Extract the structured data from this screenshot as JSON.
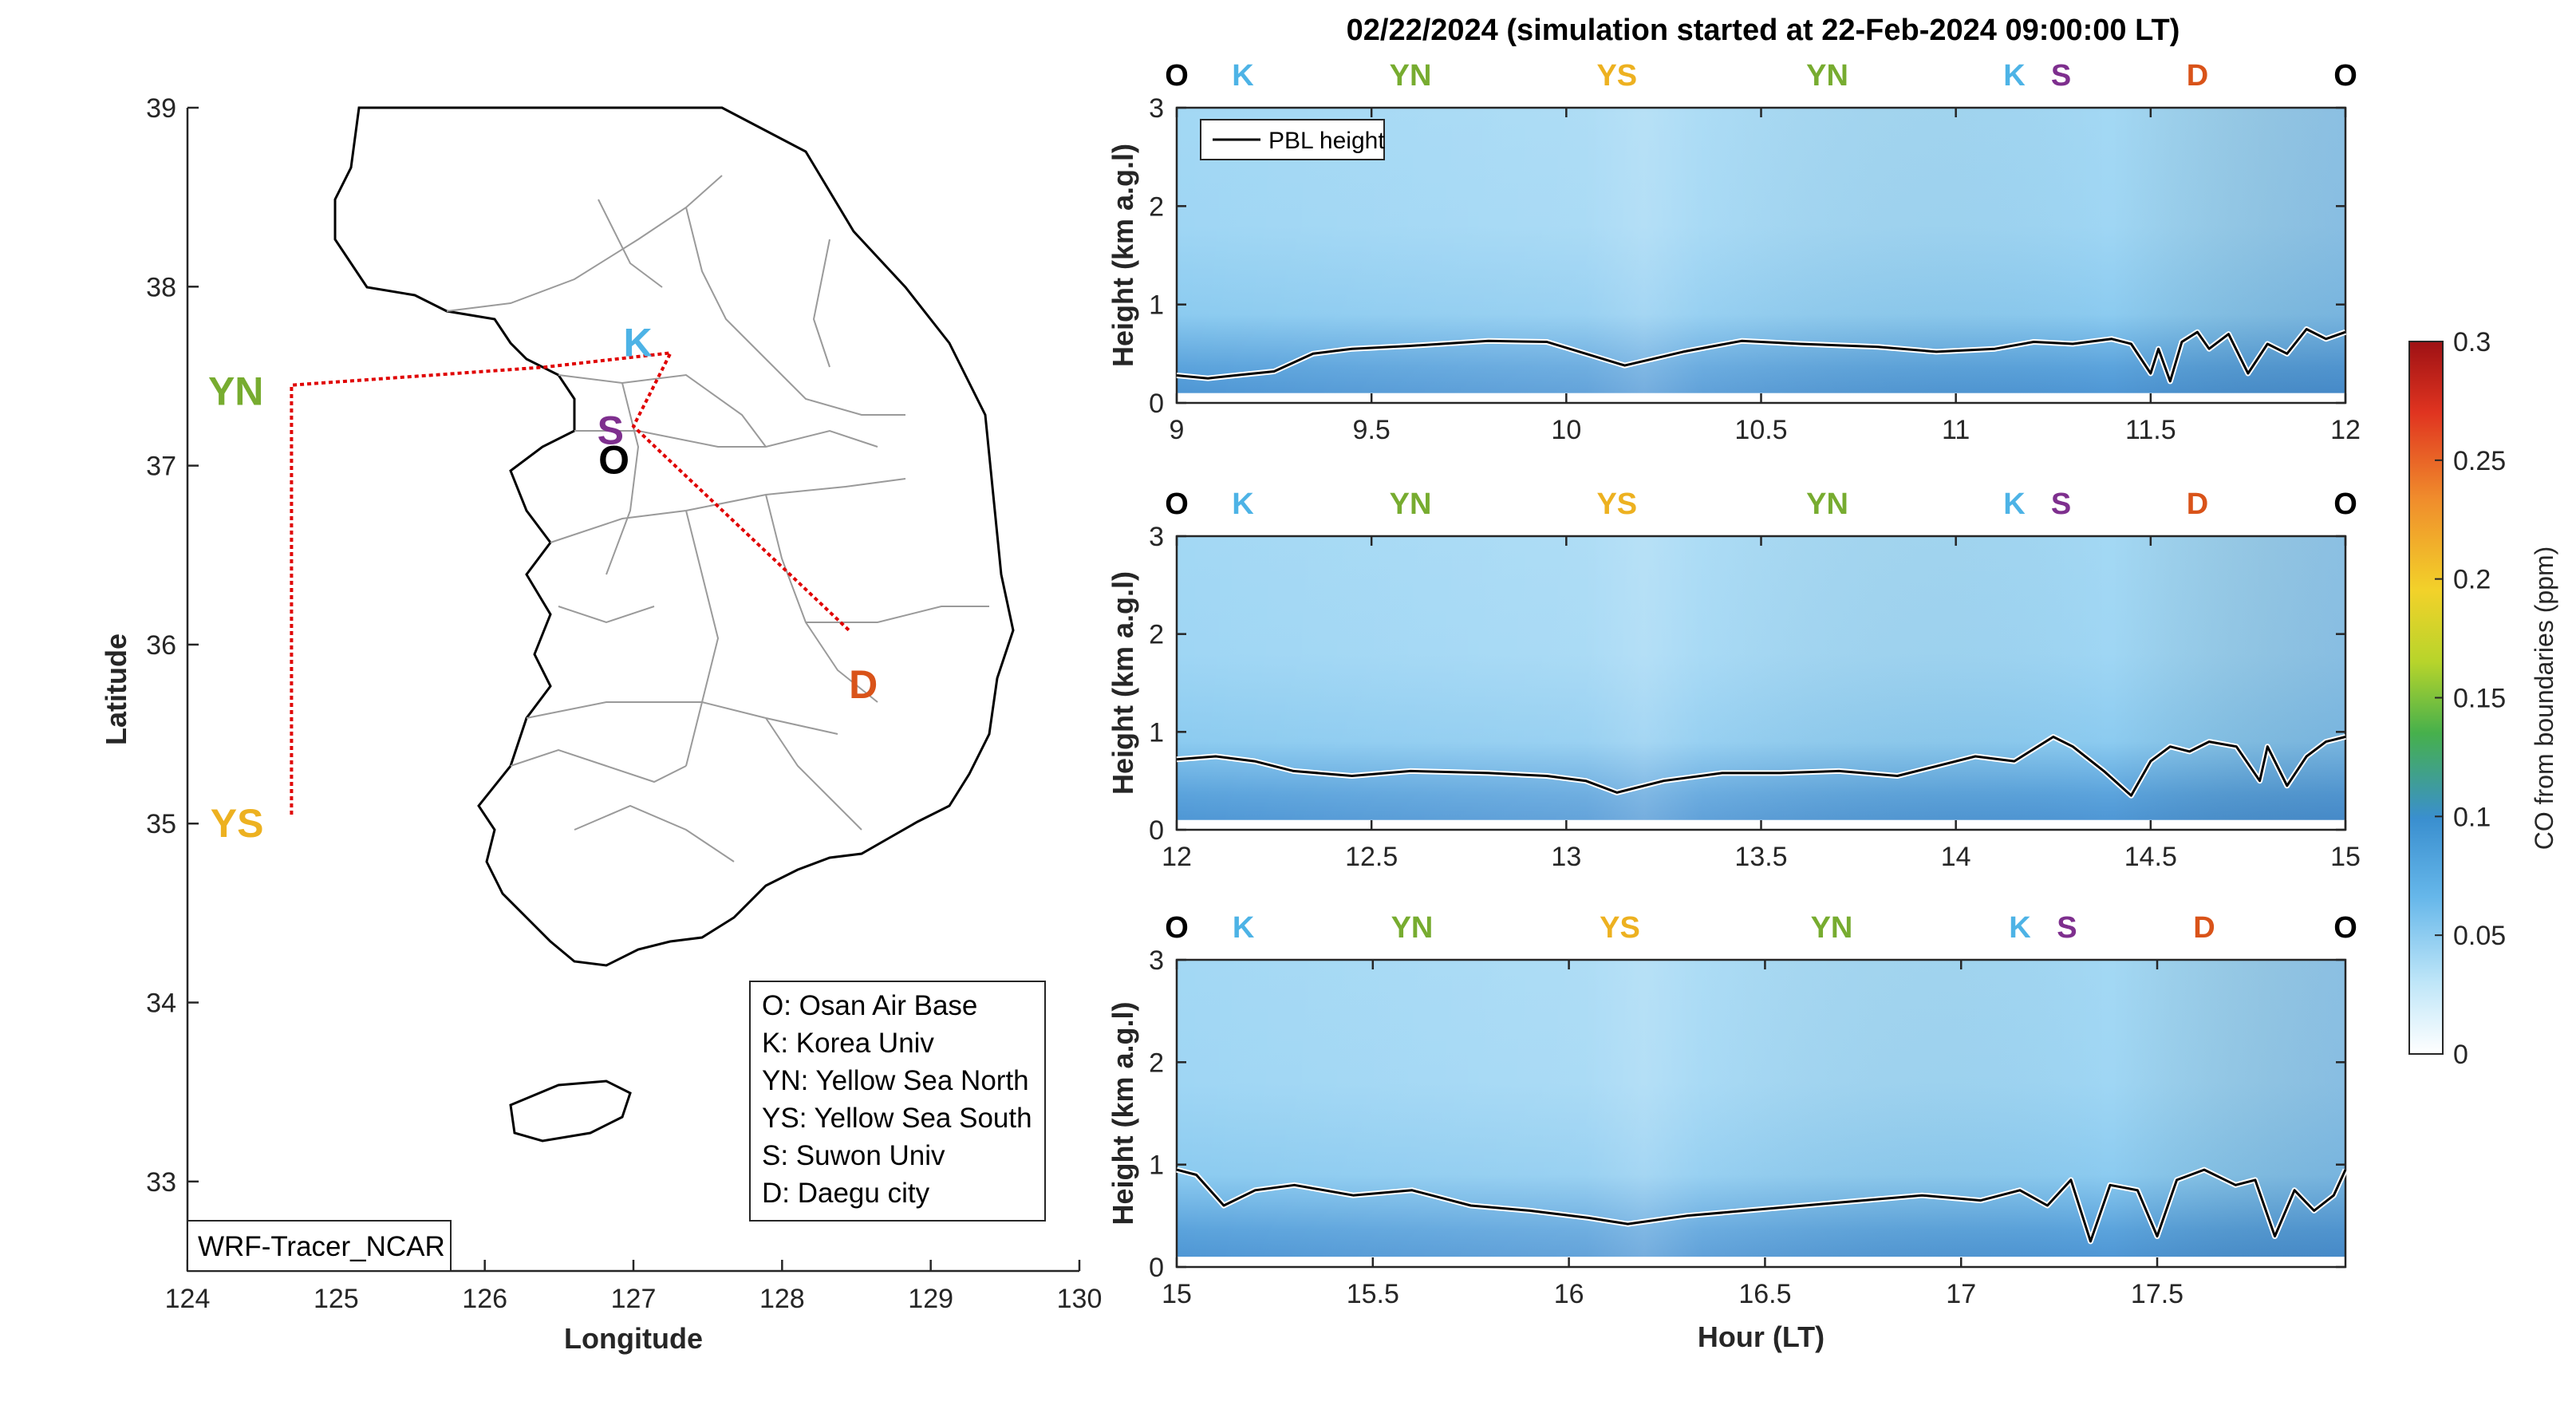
{
  "title": "02/22/2024 (simulation started at 22-Feb-2024 09:00:00 LT)",
  "colors": {
    "O": "#000000",
    "K": "#4db3e6",
    "YN": "#77ac30",
    "YS": "#edb120",
    "S": "#7e2f8e",
    "D": "#d95319",
    "track": "#e00000",
    "pbl_line": "#000000",
    "axis": "#262626"
  },
  "map": {
    "xlabel": "Longitude",
    "ylabel": "Latitude",
    "xlim": [
      124,
      130
    ],
    "ylim": [
      32.5,
      39
    ],
    "xticks": [
      "124",
      "125",
      "126",
      "127",
      "128",
      "129",
      "130"
    ],
    "yticks": [
      "33",
      "34",
      "35",
      "36",
      "37",
      "38",
      "39"
    ],
    "model_label": "WRF-Tracer_NCAR",
    "sites": [
      {
        "code": "K",
        "lon": 127.03,
        "lat": 37.59
      },
      {
        "code": "S",
        "lon": 126.98,
        "lat": 37.21
      },
      {
        "code": "O",
        "lon": 127.03,
        "lat": 37.09
      },
      {
        "code": "YN",
        "lon": 124.7,
        "lat": 37.45
      },
      {
        "code": "YS",
        "lon": 124.7,
        "lat": 35.05
      },
      {
        "code": "D",
        "lon": 128.6,
        "lat": 35.87
      }
    ],
    "track": [
      {
        "lon": 124.7,
        "lat": 35.05
      },
      {
        "lon": 124.7,
        "lat": 37.45
      },
      {
        "lon": 126.4,
        "lat": 37.55
      },
      {
        "lon": 127.25,
        "lat": 37.63
      },
      {
        "lon": 127.0,
        "lat": 37.22
      },
      {
        "lon": 128.45,
        "lat": 36.08
      }
    ],
    "legend": [
      "O: Osan Air Base",
      "K: Korea Univ",
      "YN: Yellow Sea North",
      "YS: Yellow Sea South",
      "S: Suwon Univ",
      "D: Daegu city"
    ]
  },
  "curtain": {
    "ylabel": "Height (km a.g.l)",
    "xlabel": "Hour (LT)",
    "pbl_legend": "PBL height",
    "site_sequence": [
      "O",
      "K",
      "YN",
      "YS",
      "YN",
      "K",
      "S",
      "D",
      "O"
    ],
    "yticks": [
      "0",
      "1",
      "2",
      "3"
    ]
  },
  "colorbar": {
    "label": "CO from boundaries (ppm)",
    "ticks": [
      "0",
      "0.05",
      "0.1",
      "0.15",
      "0.2",
      "0.25",
      "0.3"
    ]
  },
  "chart_data": [
    {
      "type": "line",
      "title": "02/22/2024 (simulation started at 22-Feb-2024 09:00:00 LT)",
      "xlabel": "",
      "ylabel": "Height (km a.g.l)",
      "xlim": [
        9,
        12
      ],
      "ylim": [
        0,
        3
      ],
      "xticks": [
        "9",
        "9.5",
        "10",
        "10.5",
        "11",
        "11.5",
        "12"
      ],
      "site_x": [
        9.0,
        9.17,
        9.6,
        10.13,
        10.67,
        11.15,
        11.27,
        11.62,
        12.0
      ],
      "series": [
        {
          "name": "PBL height",
          "x": [
            9.0,
            9.08,
            9.15,
            9.25,
            9.35,
            9.45,
            9.6,
            9.8,
            9.95,
            10.05,
            10.15,
            10.3,
            10.45,
            10.6,
            10.8,
            10.95,
            11.1,
            11.2,
            11.3,
            11.4,
            11.45,
            11.5,
            11.52,
            11.55,
            11.58,
            11.62,
            11.65,
            11.7,
            11.75,
            11.8,
            11.85,
            11.9,
            11.95,
            12.0
          ],
          "y": [
            0.28,
            0.25,
            0.28,
            0.32,
            0.5,
            0.55,
            0.58,
            0.63,
            0.62,
            0.5,
            0.38,
            0.52,
            0.63,
            0.6,
            0.57,
            0.52,
            0.55,
            0.62,
            0.6,
            0.65,
            0.6,
            0.3,
            0.55,
            0.22,
            0.62,
            0.72,
            0.55,
            0.7,
            0.3,
            0.6,
            0.5,
            0.75,
            0.65,
            0.72
          ]
        }
      ]
    },
    {
      "type": "line",
      "xlabel": "",
      "ylabel": "Height (km a.g.l)",
      "xlim": [
        12,
        15
      ],
      "ylim": [
        0,
        3
      ],
      "xticks": [
        "12",
        "12.5",
        "13",
        "13.5",
        "14",
        "14.5",
        "15"
      ],
      "site_x": [
        12.0,
        12.17,
        12.6,
        13.13,
        13.67,
        14.15,
        14.27,
        14.62,
        15.0
      ],
      "series": [
        {
          "name": "PBL height",
          "x": [
            12.0,
            12.1,
            12.2,
            12.3,
            12.45,
            12.6,
            12.8,
            12.95,
            13.05,
            13.13,
            13.25,
            13.4,
            13.55,
            13.7,
            13.85,
            13.95,
            14.05,
            14.15,
            14.25,
            14.3,
            14.38,
            14.45,
            14.5,
            14.55,
            14.6,
            14.65,
            14.72,
            14.78,
            14.8,
            14.85,
            14.9,
            14.95,
            15.0
          ],
          "y": [
            0.72,
            0.75,
            0.7,
            0.6,
            0.55,
            0.6,
            0.58,
            0.55,
            0.5,
            0.38,
            0.5,
            0.58,
            0.58,
            0.6,
            0.55,
            0.65,
            0.75,
            0.7,
            0.95,
            0.85,
            0.6,
            0.35,
            0.7,
            0.85,
            0.8,
            0.9,
            0.85,
            0.5,
            0.85,
            0.45,
            0.75,
            0.9,
            0.95
          ]
        }
      ]
    },
    {
      "type": "line",
      "xlabel": "Hour (LT)",
      "ylabel": "Height (km a.g.l)",
      "xlim": [
        15,
        17.98
      ],
      "ylim": [
        0,
        3
      ],
      "xticks": [
        "15",
        "15.5",
        "16",
        "16.5",
        "17",
        "17.5"
      ],
      "site_x": [
        15.0,
        15.17,
        15.6,
        16.13,
        16.67,
        17.15,
        17.27,
        17.62,
        17.98
      ],
      "series": [
        {
          "name": "PBL height",
          "x": [
            15.0,
            15.05,
            15.12,
            15.2,
            15.3,
            15.45,
            15.6,
            15.75,
            15.9,
            16.05,
            16.15,
            16.3,
            16.45,
            16.6,
            16.75,
            16.9,
            17.05,
            17.15,
            17.22,
            17.28,
            17.33,
            17.38,
            17.45,
            17.5,
            17.55,
            17.62,
            17.7,
            17.75,
            17.8,
            17.85,
            17.9,
            17.95,
            17.98
          ],
          "y": [
            0.95,
            0.9,
            0.6,
            0.75,
            0.8,
            0.7,
            0.75,
            0.6,
            0.55,
            0.48,
            0.42,
            0.5,
            0.55,
            0.6,
            0.65,
            0.7,
            0.65,
            0.75,
            0.6,
            0.85,
            0.25,
            0.8,
            0.75,
            0.3,
            0.85,
            0.95,
            0.8,
            0.85,
            0.3,
            0.75,
            0.55,
            0.7,
            0.95
          ]
        }
      ]
    }
  ]
}
